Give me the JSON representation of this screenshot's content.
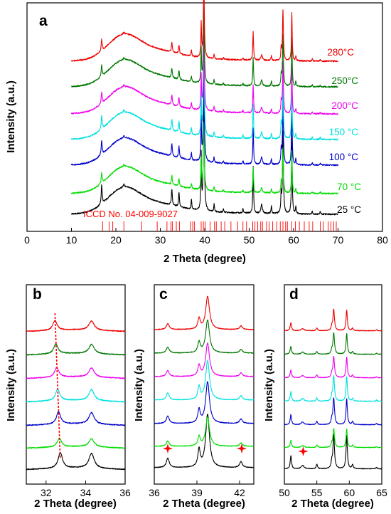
{
  "chart_data": [
    {
      "id": "a",
      "type": "line",
      "panel_label": "a",
      "xlabel": "2 Theta (degree)",
      "ylabel": "Intensity (a.u.)",
      "xlim": [
        0,
        80
      ],
      "x_ticks": [
        "0",
        "10",
        "20",
        "30",
        "40",
        "50",
        "60",
        "70",
        "80"
      ],
      "x_from": 10,
      "x_to": 70,
      "series": [
        {
          "name": "25 °C",
          "color": "#000000",
          "scale": 1.0
        },
        {
          "name": "70 °C",
          "color": "#00dd00",
          "scale": 0.55
        },
        {
          "name": "100 °C",
          "color": "#0000cc",
          "scale": 0.78
        },
        {
          "name": "150 °C",
          "color": "#00e0e0",
          "scale": 0.74
        },
        {
          "name": "200°C",
          "color": "#ee00ee",
          "scale": 0.62
        },
        {
          "name": "250°C",
          "color": "#007700",
          "scale": 0.62
        },
        {
          "name": "280°C",
          "color": "#ee0000",
          "scale": 0.62
        }
      ],
      "peaks": [
        {
          "x": 16.8,
          "h": 0.55,
          "w": 0.13
        },
        {
          "x": 21.8,
          "h": 0.09,
          "w": 0.15
        },
        {
          "x": 32.6,
          "h": 0.46,
          "w": 0.12
        },
        {
          "x": 34.2,
          "h": 0.42,
          "w": 0.12
        },
        {
          "x": 37.0,
          "h": 0.28,
          "w": 0.1
        },
        {
          "x": 39.2,
          "h": 1.6,
          "w": 0.09
        },
        {
          "x": 39.8,
          "h": 3.6,
          "w": 0.13
        },
        {
          "x": 42.1,
          "h": 0.22,
          "w": 0.1
        },
        {
          "x": 44.2,
          "h": 0.09,
          "w": 0.1
        },
        {
          "x": 48.6,
          "h": 0.12,
          "w": 0.1
        },
        {
          "x": 50.9,
          "h": 1.35,
          "w": 0.1
        },
        {
          "x": 52.8,
          "h": 0.27,
          "w": 0.2
        },
        {
          "x": 55.0,
          "h": 0.22,
          "w": 0.1
        },
        {
          "x": 57.2,
          "h": 0.55,
          "w": 0.1
        },
        {
          "x": 57.6,
          "h": 2.4,
          "w": 0.12
        },
        {
          "x": 59.6,
          "h": 2.3,
          "w": 0.1
        },
        {
          "x": 60.5,
          "h": 0.22,
          "w": 0.1
        },
        {
          "x": 64.2,
          "h": 0.09,
          "w": 0.1
        },
        {
          "x": 66.0,
          "h": 0.08,
          "w": 0.1
        }
      ],
      "reference": {
        "label": "ICCD No. 04-009-9027",
        "color": "#ff0000",
        "positions": [
          17.0,
          18.5,
          19.3,
          21.8,
          25.8,
          29.3,
          31.5,
          32.4,
          32.7,
          33.6,
          34.3,
          36.8,
          37.3,
          37.7,
          39.2,
          39.7,
          40.1,
          41.2,
          42.2,
          42.6,
          43.7,
          44.5,
          45.9,
          47.4,
          48.6,
          49.4,
          50.8,
          51.3,
          51.9,
          52.6,
          53.0,
          53.9,
          54.5,
          55.3,
          56.2,
          57.0,
          57.6,
          58.2,
          58.6,
          59.6,
          60.4,
          61.3,
          62.4,
          63.5,
          64.3,
          66.0,
          66.7,
          67.8,
          68.4,
          69.0,
          69.6
        ]
      }
    },
    {
      "id": "b",
      "type": "line",
      "panel_label": "b",
      "xlabel": "2 Theta (degree)",
      "ylabel": "Intensity (a.u.)",
      "xlim": [
        31,
        36
      ],
      "x_ticks": [
        "32",
        "34",
        "36"
      ],
      "peaks": [
        {
          "x": 32.65,
          "h": 1.0,
          "w": 0.13
        },
        {
          "x": 34.3,
          "h": 0.95,
          "w": 0.16
        }
      ],
      "guide": {
        "x_top": 32.45,
        "x_bottom": 32.72,
        "color": "#ff0000"
      }
    },
    {
      "id": "c",
      "type": "line",
      "panel_label": "c",
      "xlabel": "2 Theta (degree)",
      "ylabel": "Intensity (a.u.)",
      "xlim": [
        36,
        43
      ],
      "x_ticks": [
        "36",
        "39",
        "42"
      ],
      "peaks": [
        {
          "x": 36.95,
          "h": 0.9,
          "w": 0.12
        },
        {
          "x": 39.15,
          "h": 1.6,
          "w": 0.1
        },
        {
          "x": 39.75,
          "h": 5.0,
          "w": 0.16
        },
        {
          "x": 42.1,
          "h": 0.55,
          "w": 0.12
        }
      ],
      "markers": [
        {
          "x": 36.95,
          "symbol": "star"
        },
        {
          "x": 42.15,
          "symbol": "star"
        }
      ]
    },
    {
      "id": "d",
      "type": "line",
      "panel_label": "d",
      "xlabel": "2 Theta (degree)",
      "ylabel": "Intensity (a.u.)",
      "xlim": [
        50,
        65
      ],
      "x_ticks": [
        "50",
        "55",
        "60",
        "65"
      ],
      "peaks": [
        {
          "x": 51.0,
          "h": 1.3,
          "w": 0.12
        },
        {
          "x": 52.8,
          "h": 0.35,
          "w": 0.25
        },
        {
          "x": 55.0,
          "h": 0.45,
          "w": 0.12
        },
        {
          "x": 57.3,
          "h": 0.6,
          "w": 0.1
        },
        {
          "x": 57.6,
          "h": 3.4,
          "w": 0.14
        },
        {
          "x": 59.6,
          "h": 3.3,
          "w": 0.12
        },
        {
          "x": 60.5,
          "h": 0.4,
          "w": 0.12
        },
        {
          "x": 64.2,
          "h": 0.15,
          "w": 0.12
        }
      ],
      "markers": [
        {
          "x": 52.9,
          "symbol": "star"
        }
      ]
    }
  ]
}
